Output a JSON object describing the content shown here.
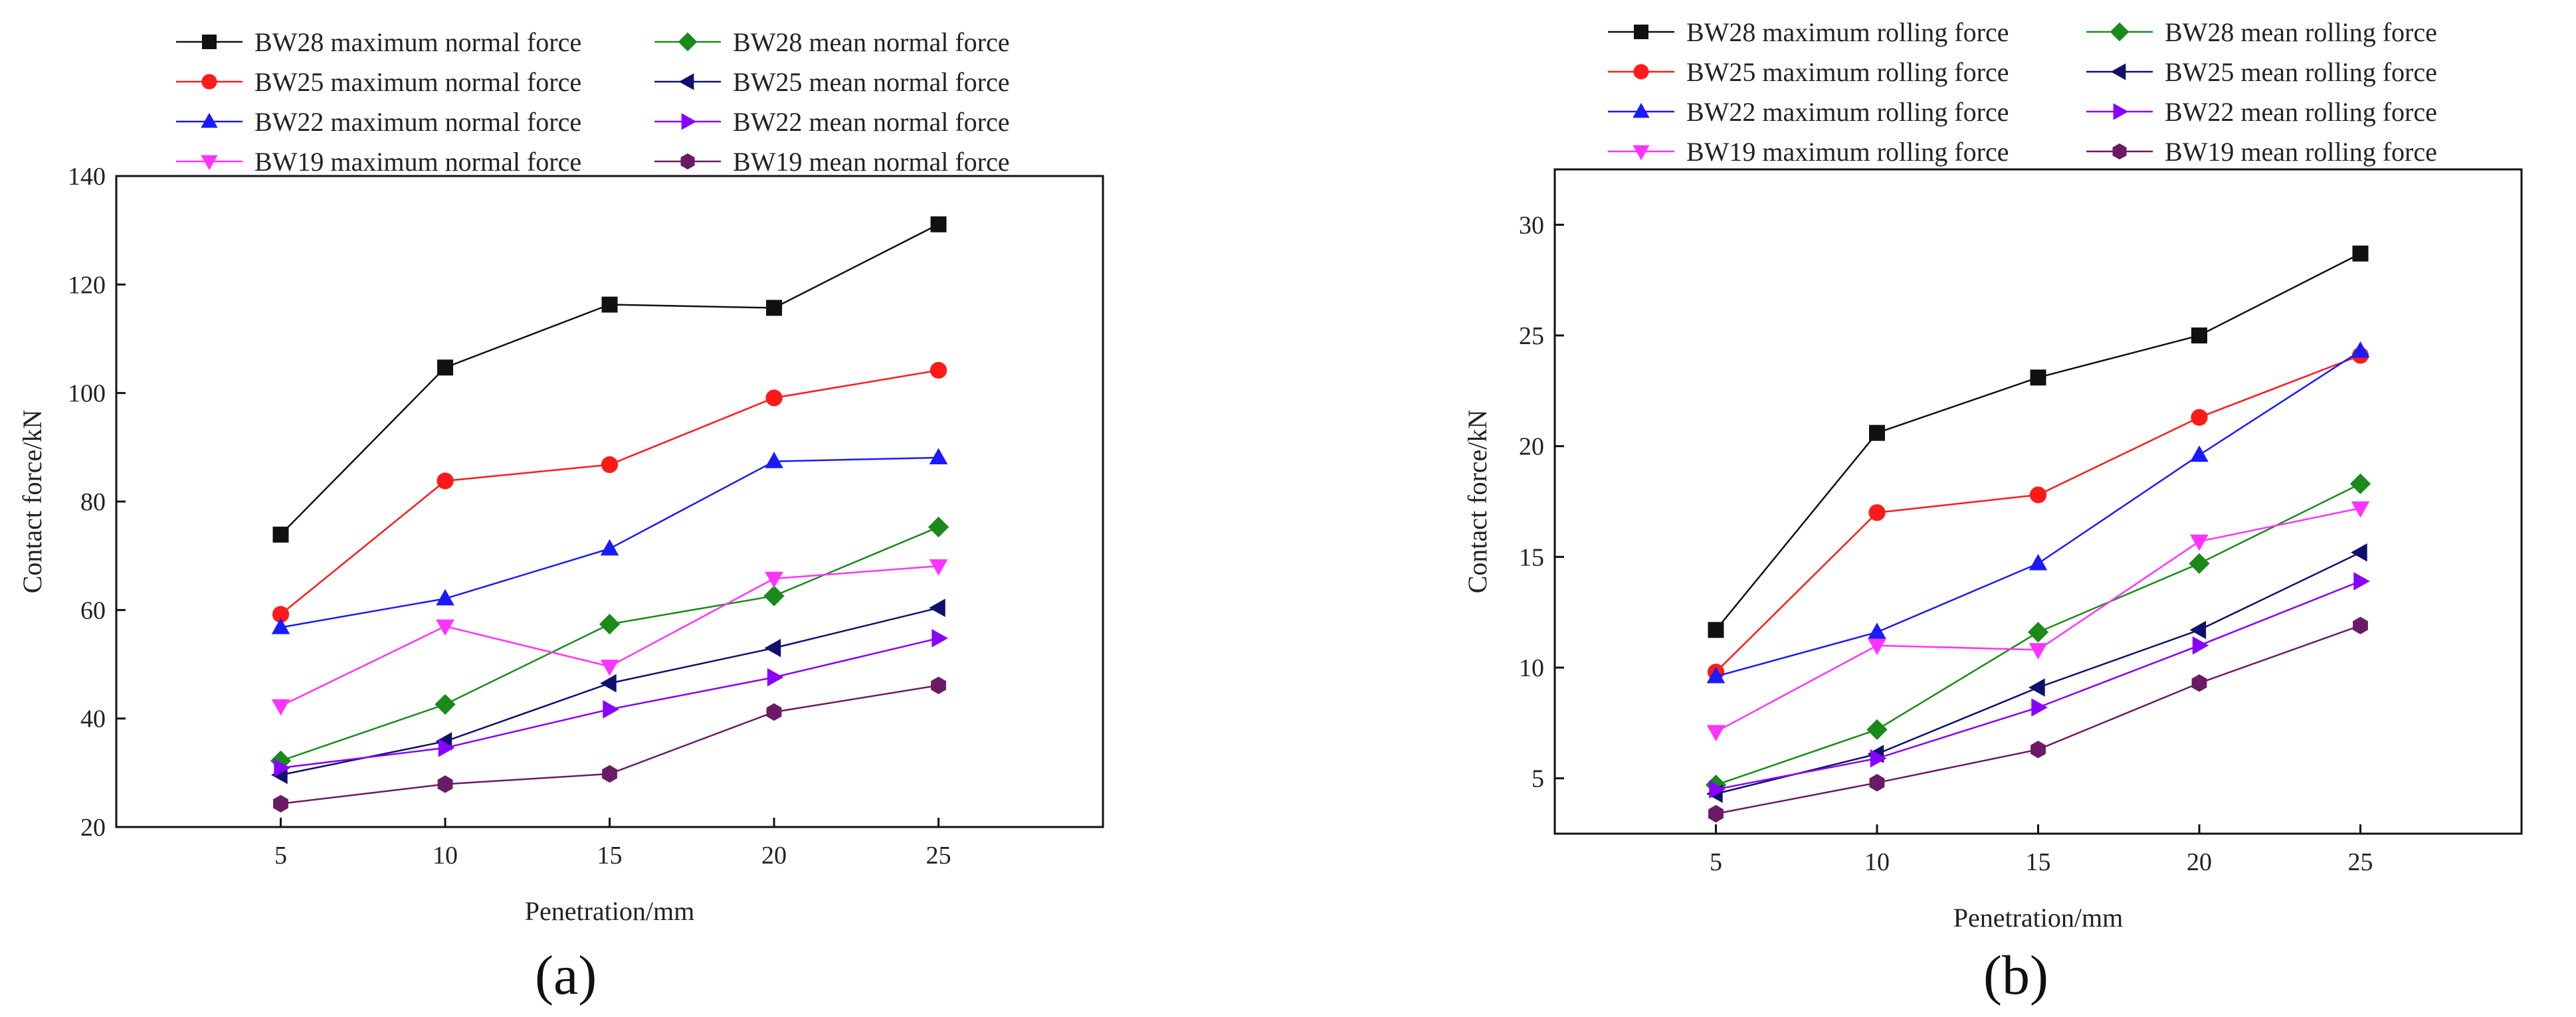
{
  "colors": {
    "BW28_max": "#111111",
    "BW28_mean": "#1a8a1a",
    "BW25_max": "#ff1a1a",
    "BW25_mean": "#10106e",
    "BW22_max": "#1a1aff",
    "BW22_mean": "#8800ff",
    "BW19_max": "#ff33ff",
    "BW19_mean": "#6b1a66"
  },
  "chart_data": [
    {
      "panel_label": "(a)",
      "type": "line",
      "title": "",
      "xlabel": "Penetration/mm",
      "ylabel": "Contact force/kN",
      "x": [
        5,
        10,
        15,
        20,
        25
      ],
      "x_ticks": [
        "5",
        "10",
        "15",
        "20",
        "25"
      ],
      "xlim": [
        0,
        30
      ],
      "ylim": [
        20,
        140
      ],
      "y_ticks": [
        "20",
        "40",
        "60",
        "80",
        "100",
        "120",
        "140"
      ],
      "y_tick_values": [
        20,
        40,
        60,
        80,
        100,
        120,
        140
      ],
      "grid": false,
      "legend_position": "top",
      "series": [
        {
          "name": "BW28 maximum normal force",
          "key": "BW28_max",
          "marker": "square",
          "values": [
            73.9,
            104.7,
            116.3,
            115.7,
            131.1
          ]
        },
        {
          "name": "BW28 mean normal force",
          "key": "BW28_mean",
          "marker": "diamond",
          "values": [
            32.2,
            42.6,
            57.4,
            62.6,
            75.3
          ]
        },
        {
          "name": "BW25 maximum normal force",
          "key": "BW25_max",
          "marker": "circle",
          "values": [
            59.2,
            83.8,
            86.8,
            99.1,
            104.2
          ]
        },
        {
          "name": "BW25 mean normal force",
          "key": "BW25_mean",
          "marker": "triangle-left",
          "values": [
            29.6,
            35.8,
            46.5,
            53.0,
            60.4
          ]
        },
        {
          "name": "BW22 maximum normal force",
          "key": "BW22_max",
          "marker": "triangle-up",
          "values": [
            56.8,
            62.1,
            71.3,
            87.4,
            88.1
          ]
        },
        {
          "name": "BW22 mean normal force",
          "key": "BW22_mean",
          "marker": "triangle-right",
          "values": [
            30.9,
            34.6,
            41.7,
            47.6,
            54.8
          ]
        },
        {
          "name": "BW19 maximum normal force",
          "key": "BW19_max",
          "marker": "triangle-down",
          "values": [
            42.3,
            57.0,
            49.6,
            65.8,
            68.1
          ]
        },
        {
          "name": "BW19 mean normal force",
          "key": "BW19_mean",
          "marker": "hexagon",
          "values": [
            24.3,
            27.9,
            29.8,
            41.2,
            46.1
          ]
        }
      ]
    },
    {
      "panel_label": "(b)",
      "type": "line",
      "title": "",
      "xlabel": "Penetration/mm",
      "ylabel": "Contact force/kN",
      "x": [
        5,
        10,
        15,
        20,
        25
      ],
      "x_ticks": [
        "5",
        "10",
        "15",
        "20",
        "25"
      ],
      "xlim": [
        0,
        30
      ],
      "ylim": [
        2.5,
        32.5
      ],
      "y_ticks": [
        "5",
        "10",
        "15",
        "20",
        "25",
        "30"
      ],
      "y_tick_values": [
        5,
        10,
        15,
        20,
        25,
        30
      ],
      "grid": false,
      "legend_position": "top",
      "series": [
        {
          "name": "BW28 maximum rolling force",
          "key": "BW28_max",
          "marker": "square",
          "values": [
            11.7,
            20.6,
            23.1,
            25.0,
            28.7
          ]
        },
        {
          "name": "BW28 mean rolling force",
          "key": "BW28_mean",
          "marker": "diamond",
          "values": [
            4.7,
            7.2,
            11.6,
            14.7,
            18.3
          ]
        },
        {
          "name": "BW25 maximum rolling force",
          "key": "BW25_max",
          "marker": "circle",
          "values": [
            9.8,
            17.0,
            17.8,
            21.3,
            24.1
          ]
        },
        {
          "name": "BW25 mean rolling force",
          "key": "BW25_mean",
          "marker": "triangle-left",
          "values": [
            4.3,
            6.1,
            9.1,
            11.7,
            15.2
          ]
        },
        {
          "name": "BW22 maximum rolling force",
          "key": "BW22_max",
          "marker": "triangle-up",
          "values": [
            9.6,
            11.6,
            14.7,
            19.6,
            24.3
          ]
        },
        {
          "name": "BW22 mean rolling force",
          "key": "BW22_mean",
          "marker": "triangle-right",
          "values": [
            4.5,
            5.9,
            8.2,
            11.0,
            13.9
          ]
        },
        {
          "name": "BW19 maximum rolling force",
          "key": "BW19_max",
          "marker": "triangle-down",
          "values": [
            7.1,
            11.0,
            10.8,
            15.7,
            17.2
          ]
        },
        {
          "name": "BW19 mean rolling force",
          "key": "BW19_mean",
          "marker": "hexagon",
          "values": [
            3.4,
            4.8,
            6.3,
            9.3,
            11.9
          ]
        }
      ]
    }
  ]
}
